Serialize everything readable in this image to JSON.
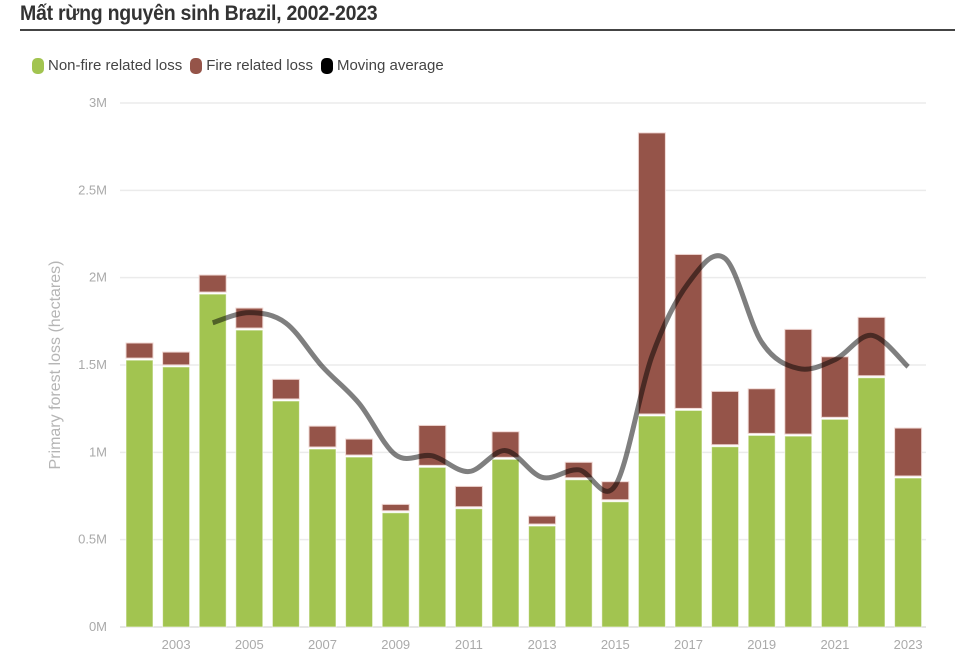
{
  "title": "Mất rừng nguyên sinh Brazil, 2002-2023",
  "legend": [
    {
      "label": "Non-fire related loss",
      "color": "#a2c450"
    },
    {
      "label": "Fire related loss",
      "color": "#955449"
    },
    {
      "label": "Moving average",
      "color": "#000000"
    }
  ],
  "chart_data": {
    "type": "bar",
    "stacked": true,
    "title": "Mất rừng nguyên sinh Brazil, 2002-2023",
    "xlabel": "",
    "ylabel": "Primary forest loss (hectares)",
    "ylim": [
      0,
      3000000
    ],
    "yticks": [
      0,
      500000,
      1000000,
      1500000,
      2000000,
      2500000,
      3000000
    ],
    "ytick_labels": [
      "0M",
      "0.5M",
      "1M",
      "1.5M",
      "2M",
      "2.5M",
      "3M"
    ],
    "grid": true,
    "legend_position": "top-left",
    "categories": [
      "2002",
      "2003",
      "2004",
      "2005",
      "2006",
      "2007",
      "2008",
      "2009",
      "2010",
      "2011",
      "2012",
      "2013",
      "2014",
      "2015",
      "2016",
      "2017",
      "2018",
      "2019",
      "2020",
      "2021",
      "2022",
      "2023"
    ],
    "xtick_labels": [
      "2003",
      "2005",
      "2007",
      "2009",
      "2011",
      "2013",
      "2015",
      "2017",
      "2019",
      "2021",
      "2023"
    ],
    "series": [
      {
        "name": "Non-fire related loss",
        "color": "#a2c450",
        "values": [
          1528000,
          1489000,
          1906000,
          1700000,
          1294000,
          1019000,
          973000,
          654000,
          914000,
          677000,
          960000,
          578000,
          843000,
          717000,
          1208000,
          1240000,
          1032000,
          1097000,
          1093000,
          1189000,
          1427000,
          853000
        ]
      },
      {
        "name": "Fire related loss",
        "color": "#955449",
        "values": [
          98000,
          85000,
          109000,
          126000,
          124000,
          131000,
          103000,
          48000,
          240000,
          128000,
          158000,
          57000,
          100000,
          115000,
          1621000,
          893000,
          317000,
          267000,
          611000,
          358000,
          346000,
          286000
        ]
      },
      {
        "name": "Moving average",
        "type": "line",
        "color": "#000000",
        "values": [
          null,
          null,
          1742000,
          1800000,
          1740000,
          1490000,
          1280000,
          985000,
          980000,
          890000,
          1010000,
          857000,
          900000,
          810000,
          1550000,
          1970000,
          2110000,
          1630000,
          1480000,
          1530000,
          1670000,
          1490000
        ]
      }
    ]
  }
}
